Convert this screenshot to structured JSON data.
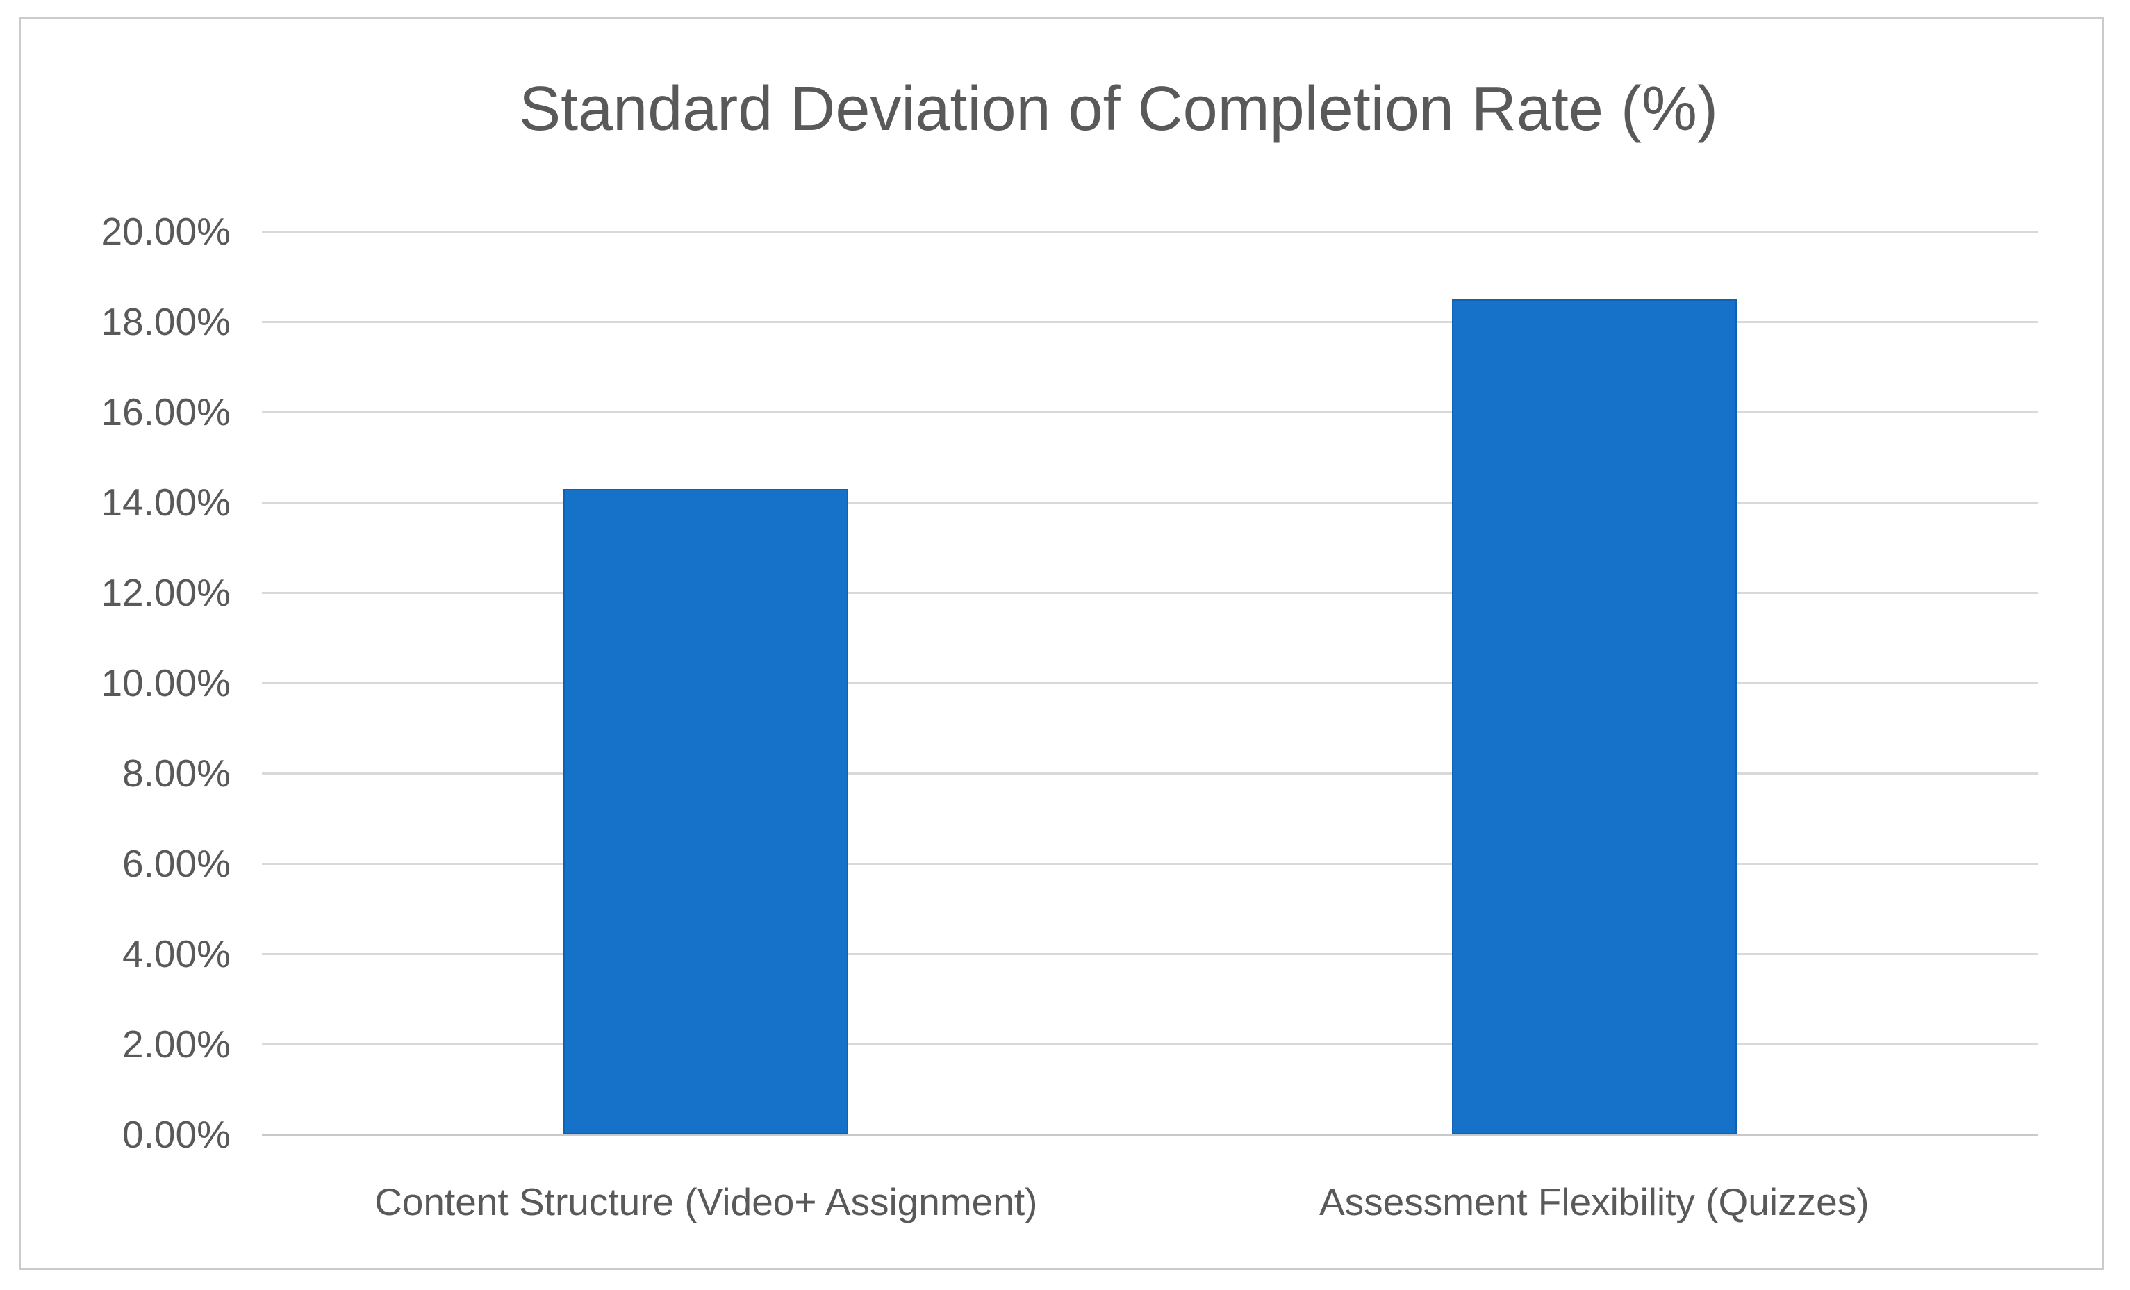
{
  "chart_data": {
    "type": "bar",
    "title": "Standard Deviation of Completion Rate (%)",
    "categories": [
      "Content Structure (Video+ Assignment)",
      "Assessment Flexibility (Quizzes)"
    ],
    "values": [
      14.3,
      18.5
    ],
    "unit": "%",
    "ylim": [
      0,
      20
    ],
    "ytick_step": 2,
    "ytick_labels": [
      "0.00%",
      "2.00%",
      "4.00%",
      "6.00%",
      "8.00%",
      "10.00%",
      "12.00%",
      "14.00%",
      "16.00%",
      "18.00%",
      "20.00%"
    ],
    "grid": true,
    "legend": false,
    "colors": {
      "bar_fill": "#1572c8",
      "bar_edge": "#1061b3",
      "text": "#595959",
      "gridline": "#d9d9d9",
      "axis_line": "#c9c9c9",
      "frame_border": "#cbcbcb",
      "background": "#ffffff"
    }
  }
}
